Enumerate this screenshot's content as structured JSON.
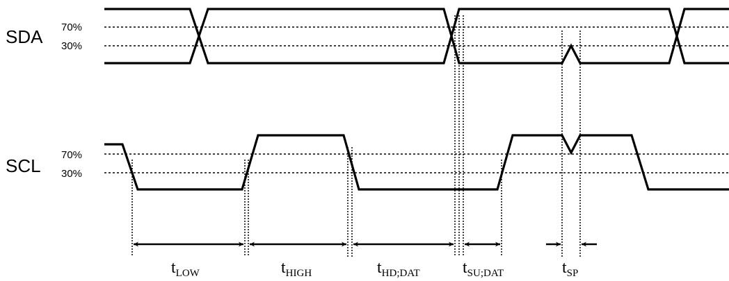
{
  "signals": {
    "sda": {
      "name": "SDA",
      "level_high": "70%",
      "level_low": "30%"
    },
    "scl": {
      "name": "SCL",
      "level_high": "70%",
      "level_low": "30%"
    }
  },
  "timings": [
    {
      "id": "low",
      "symbol": "t",
      "subscript": "LOW"
    },
    {
      "id": "high",
      "symbol": "t",
      "subscript": "HIGH"
    },
    {
      "id": "hd_dat",
      "symbol": "t",
      "subscript": "HD;DAT"
    },
    {
      "id": "su_dat",
      "symbol": "t",
      "subscript": "SU;DAT"
    },
    {
      "id": "sp",
      "symbol": "t",
      "subscript": "SP"
    }
  ]
}
